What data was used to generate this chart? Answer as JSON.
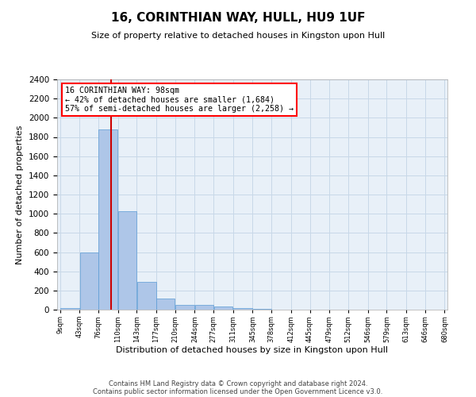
{
  "title": "16, CORINTHIAN WAY, HULL, HU9 1UF",
  "subtitle": "Size of property relative to detached houses in Kingston upon Hull",
  "xlabel": "Distribution of detached houses by size in Kingston upon Hull",
  "ylabel": "Number of detached properties",
  "footer_line1": "Contains HM Land Registry data © Crown copyright and database right 2024.",
  "footer_line2": "Contains public sector information licensed under the Open Government Licence v3.0.",
  "bar_color": "#aec6e8",
  "bar_edge_color": "#5b9bd5",
  "grid_color": "#c8d8e8",
  "background_color": "#e8f0f8",
  "annotation_line1": "16 CORINTHIAN WAY: 98sqm",
  "annotation_line2": "← 42% of detached houses are smaller (1,684)",
  "annotation_line3": "57% of semi-detached houses are larger (2,258) →",
  "vline_x": 98,
  "vline_color": "#cc0000",
  "ylim": [
    0,
    2400
  ],
  "yticks": [
    0,
    200,
    400,
    600,
    800,
    1000,
    1200,
    1400,
    1600,
    1800,
    2000,
    2200,
    2400
  ],
  "bin_edges": [
    9,
    43,
    76,
    110,
    143,
    177,
    210,
    244,
    277,
    311,
    345,
    378,
    412,
    445,
    479,
    512,
    546,
    579,
    613,
    646,
    680
  ],
  "bar_heights": [
    20,
    600,
    1880,
    1030,
    290,
    120,
    50,
    50,
    30,
    20,
    5,
    3,
    2,
    1,
    1,
    1,
    0,
    0,
    0,
    0
  ],
  "tick_labels": [
    "9sqm",
    "43sqm",
    "76sqm",
    "110sqm",
    "143sqm",
    "177sqm",
    "210sqm",
    "244sqm",
    "277sqm",
    "311sqm",
    "345sqm",
    "378sqm",
    "412sqm",
    "445sqm",
    "479sqm",
    "512sqm",
    "546sqm",
    "579sqm",
    "613sqm",
    "646sqm",
    "680sqm"
  ]
}
